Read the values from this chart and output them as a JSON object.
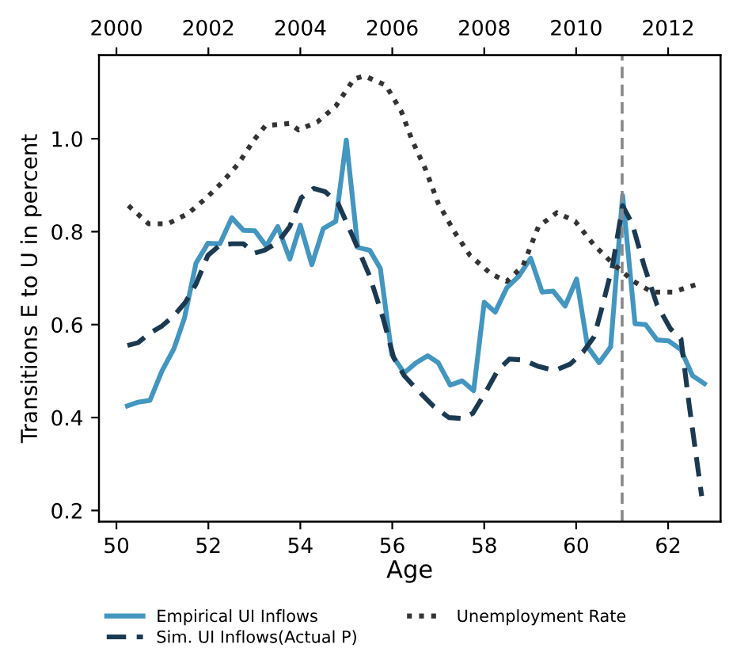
{
  "chart_data": {
    "type": "line",
    "xlabel": "Age",
    "ylabel": "Transitions E to U in percent",
    "xlim": [
      49.62,
      63.14
    ],
    "xticks": [
      50,
      52,
      54,
      56,
      58,
      60,
      62
    ],
    "x2lim": [
      1999.62,
      2013.14
    ],
    "x2ticks": [
      2000,
      2002,
      2004,
      2006,
      2008,
      2010,
      2012
    ],
    "ylim": [
      0.176,
      1.18
    ],
    "yticks": [
      {
        "value": 0.2,
        "label": "0.2"
      },
      {
        "value": 0.4,
        "label": "0.4"
      },
      {
        "value": 0.6,
        "label": "0.6"
      },
      {
        "value": 0.8,
        "label": "0.8"
      },
      {
        "value": 1.0,
        "label": "1.0"
      }
    ],
    "grid": false,
    "legend": "bottom",
    "ref_lines": [
      {
        "axis": "x",
        "value": 61.0,
        "color": "#888888",
        "line_style": "dashed"
      }
    ],
    "series": [
      {
        "name": "Empirical UI Inflows",
        "color": "#4396c0",
        "line_style": "solid",
        "x": [
          50.24,
          50.47,
          50.73,
          50.99,
          51.25,
          51.48,
          51.73,
          51.99,
          52.25,
          52.51,
          52.76,
          53.01,
          53.26,
          53.51,
          53.77,
          54.0,
          54.25,
          54.5,
          54.77,
          55.0,
          55.25,
          55.51,
          55.74,
          55.99,
          56.26,
          56.52,
          56.77,
          57.0,
          57.26,
          57.52,
          57.77,
          58.0,
          58.24,
          58.49,
          58.75,
          59.01,
          59.26,
          59.5,
          59.76,
          60.01,
          60.25,
          60.5,
          60.75,
          61.01,
          61.28,
          61.51,
          61.76,
          62.01,
          62.28,
          62.53,
          62.79
        ],
        "values": [
          0.425,
          0.433,
          0.437,
          0.5,
          0.548,
          0.614,
          0.732,
          0.775,
          0.774,
          0.83,
          0.803,
          0.802,
          0.769,
          0.811,
          0.741,
          0.814,
          0.729,
          0.807,
          0.822,
          0.997,
          0.766,
          0.76,
          0.721,
          0.535,
          0.496,
          0.518,
          0.533,
          0.518,
          0.47,
          0.479,
          0.458,
          0.648,
          0.627,
          0.679,
          0.704,
          0.743,
          0.67,
          0.672,
          0.64,
          0.698,
          0.552,
          0.518,
          0.552,
          0.878,
          0.602,
          0.6,
          0.567,
          0.565,
          0.546,
          0.49,
          0.473
        ]
      },
      {
        "name": "Sim. UI Inflows(Actual P)",
        "color": "#1b3a52",
        "line_style": "dashed",
        "x": [
          50.24,
          50.47,
          50.73,
          50.99,
          51.25,
          51.5,
          51.73,
          51.99,
          52.25,
          52.51,
          52.76,
          53.01,
          53.22,
          53.51,
          53.77,
          54.02,
          54.29,
          54.54,
          54.82,
          55.17,
          55.51,
          55.8,
          56.03,
          56.26,
          56.52,
          56.89,
          57.23,
          57.52,
          57.75,
          58.04,
          58.29,
          58.55,
          58.84,
          59.18,
          59.53,
          59.87,
          60.15,
          60.39,
          60.56,
          60.79,
          61.01,
          61.22,
          61.48,
          61.76,
          62.05,
          62.28,
          62.45,
          62.73
        ],
        "values": [
          0.555,
          0.561,
          0.582,
          0.597,
          0.619,
          0.648,
          0.687,
          0.749,
          0.771,
          0.774,
          0.774,
          0.754,
          0.76,
          0.777,
          0.811,
          0.873,
          0.893,
          0.886,
          0.861,
          0.783,
          0.704,
          0.614,
          0.529,
          0.49,
          0.462,
          0.425,
          0.4,
          0.398,
          0.409,
          0.456,
          0.501,
          0.526,
          0.524,
          0.51,
          0.501,
          0.515,
          0.541,
          0.574,
          0.636,
          0.726,
          0.856,
          0.817,
          0.726,
          0.642,
          0.591,
          0.569,
          0.433,
          0.231
        ]
      },
      {
        "name": "Unemployment Rate",
        "color": "#333333",
        "line_style": "dotted",
        "axis": "x2",
        "x": [
          2000.26,
          2000.7,
          2001.12,
          2001.56,
          2001.96,
          2002.3,
          2002.65,
          2002.99,
          2003.24,
          2003.77,
          2003.96,
          2004.37,
          2004.77,
          2005.17,
          2005.4,
          2005.86,
          2006.2,
          2006.43,
          2006.72,
          2007.0,
          2007.35,
          2007.69,
          2008.15,
          2008.49,
          2008.84,
          2009.18,
          2009.58,
          2009.98,
          2010.39,
          2010.79,
          2011.25,
          2011.65,
          2012.1,
          2012.73
        ],
        "values": [
          0.856,
          0.817,
          0.817,
          0.839,
          0.873,
          0.906,
          0.946,
          0.997,
          1.028,
          1.033,
          1.019,
          1.036,
          1.07,
          1.129,
          1.135,
          1.115,
          1.058,
          0.997,
          0.935,
          0.861,
          0.8,
          0.749,
          0.709,
          0.693,
          0.726,
          0.811,
          0.841,
          0.822,
          0.771,
          0.732,
          0.693,
          0.67,
          0.67,
          0.69
        ]
      }
    ]
  }
}
